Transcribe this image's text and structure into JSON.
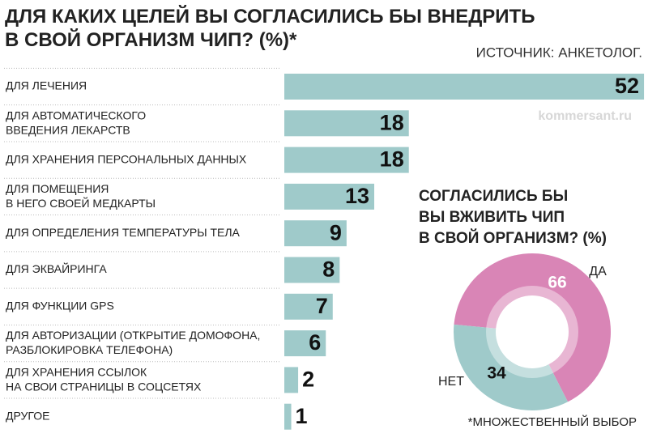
{
  "title": "ДЛЯ КАКИХ ЦЕЛЕЙ ВЫ СОГЛАСИЛИСЬ БЫ ВНЕДРИТЬ\nВ СВОЙ ОРГАНИЗМ ЧИП? (%)*",
  "source": "ИСТОЧНИК: АНКЕТОЛОГ.",
  "watermark": "kommersant.ru",
  "footnote": "*МНОЖЕСТВЕННЫЙ ВЫБОР",
  "chart_data": [
    {
      "type": "bar",
      "color": "#9fcaca",
      "categories": [
        "ДЛЯ ЛЕЧЕНИЯ",
        "ДЛЯ АВТОМАТИЧЕСКОГО\nВВЕДЕНИЯ ЛЕКАРСТВ",
        "ДЛЯ ХРАНЕНИЯ ПЕРСОНАЛЬНЫХ ДАННЫХ",
        "ДЛЯ ПОМЕЩЕНИЯ\nВ НЕГО СВОЕЙ МЕДКАРТЫ",
        "ДЛЯ ОПРЕДЕЛЕНИЯ ТЕМПЕРАТУРЫ ТЕЛА",
        "ДЛЯ ЭКВАЙРИНГА",
        "ДЛЯ ФУНКЦИИ GPS",
        "ДЛЯ АВТОРИЗАЦИИ (ОТКРЫТИЕ ДОМОФОНА,\nРАЗБЛОКИРОВКА ТЕЛЕФОНА)",
        "ДЛЯ ХРАНЕНИЯ ССЫЛОК\nНА СВОИ СТРАНИЦЫ В СОЦСЕТЯХ",
        "ДРУГОЕ"
      ],
      "values": [
        52,
        18,
        18,
        13,
        9,
        8,
        7,
        6,
        2,
        1
      ]
    },
    {
      "type": "pie",
      "title": "СОГЛАСИЛИСЬ БЫ\nВЫ ВЖИВИТЬ ЧИП\nВ СВОЙ ОРГАНИЗМ? (%)",
      "categories": [
        "ДА",
        "НЕТ"
      ],
      "values": [
        66,
        34
      ],
      "colors": [
        "#d985b6",
        "#9fcaca"
      ]
    }
  ]
}
